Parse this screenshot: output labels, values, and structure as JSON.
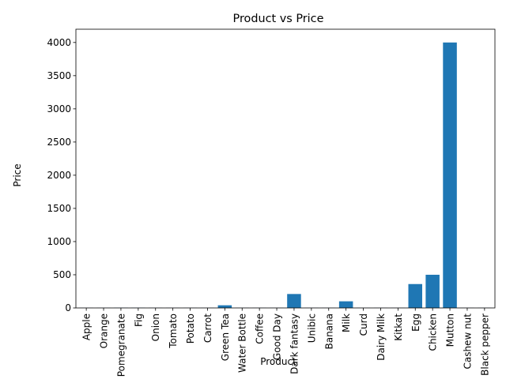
{
  "chart_data": {
    "type": "bar",
    "title": "Product vs Price",
    "xlabel": "Product",
    "ylabel": "Price",
    "categories": [
      "Apple",
      "Orange",
      "Pomegranate",
      "Fig",
      "Onion",
      "Tomato",
      "Potato",
      "Carrot",
      "Green Tea",
      "Water Bottle",
      "Coffee",
      "Good Day",
      "Dark fantasy",
      "Unibic",
      "Banana",
      "Milk",
      "Curd",
      "Dairy Milk",
      "Kitkat",
      "Egg",
      "Chicken",
      "Mutton",
      "Cashew nut",
      "Black pepper"
    ],
    "values": [
      2,
      2,
      3,
      3,
      2,
      2,
      2,
      2,
      40,
      2,
      2,
      2,
      210,
      2,
      2,
      100,
      2,
      2,
      2,
      360,
      500,
      4000,
      2,
      2
    ],
    "yticks": [
      0,
      500,
      1000,
      1500,
      2000,
      2500,
      3000,
      3500,
      4000
    ],
    "ylim": [
      0,
      4200
    ],
    "grid": false,
    "bar_color": "#1f77b4"
  }
}
